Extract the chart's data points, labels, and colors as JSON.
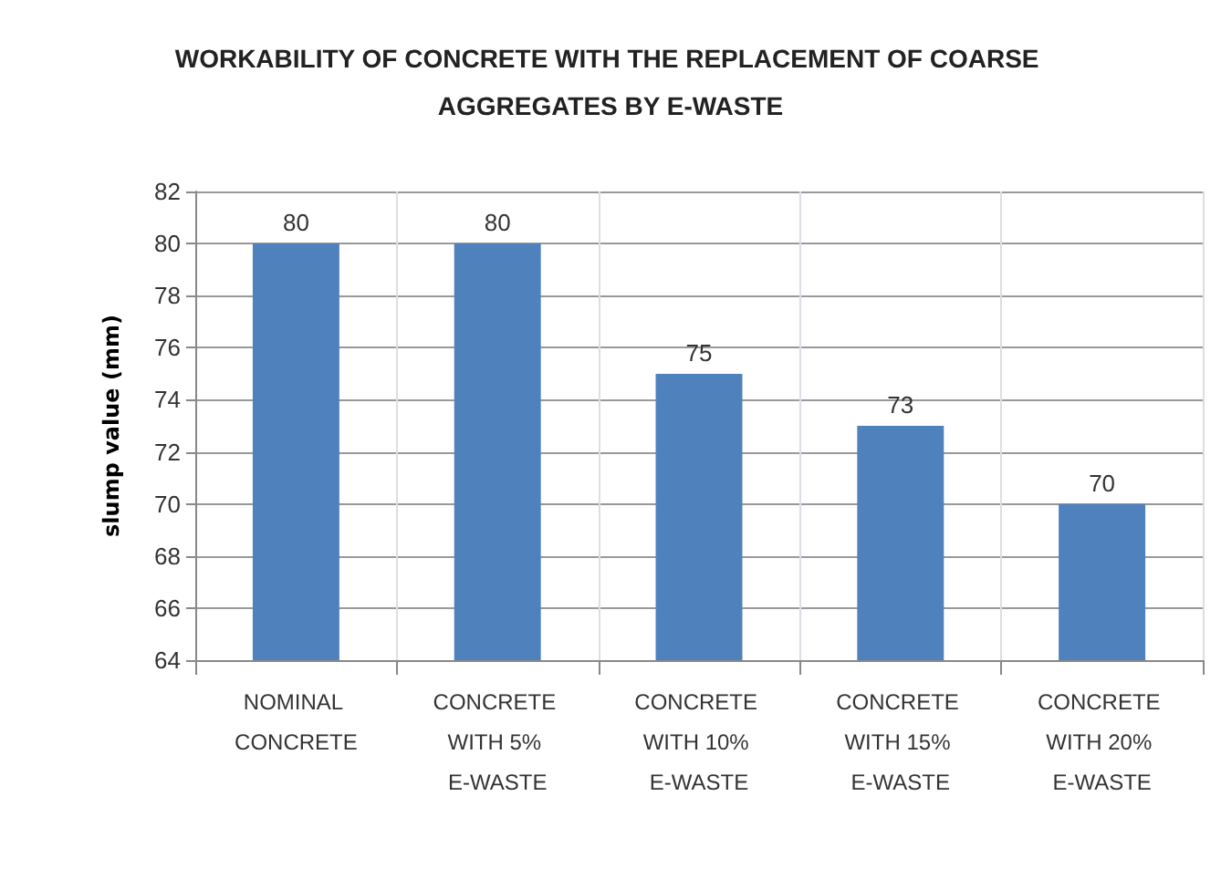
{
  "chart_data": {
    "type": "bar",
    "title": "WORKABILITY OF CONCRETE WITH THE REPLACEMENT OF COARSE AGGREGATES BY E-WASTE",
    "ylabel": "slump value (mm)",
    "categories": [
      "NOMINAL CONCRETE",
      "CONCRETE WITH 5% E-WASTE",
      "CONCRETE WITH 10% E-WASTE",
      "CONCRETE WITH 15% E-WASTE",
      "CONCRETE WITH 20% E-WASTE"
    ],
    "values": [
      80,
      80,
      75,
      73,
      70
    ],
    "color": "#4f81bd",
    "ylim": [
      64,
      82
    ],
    "yticks": [
      64,
      66,
      68,
      70,
      72,
      74,
      76,
      78,
      80,
      82
    ],
    "grid": true,
    "data_labels": true
  }
}
